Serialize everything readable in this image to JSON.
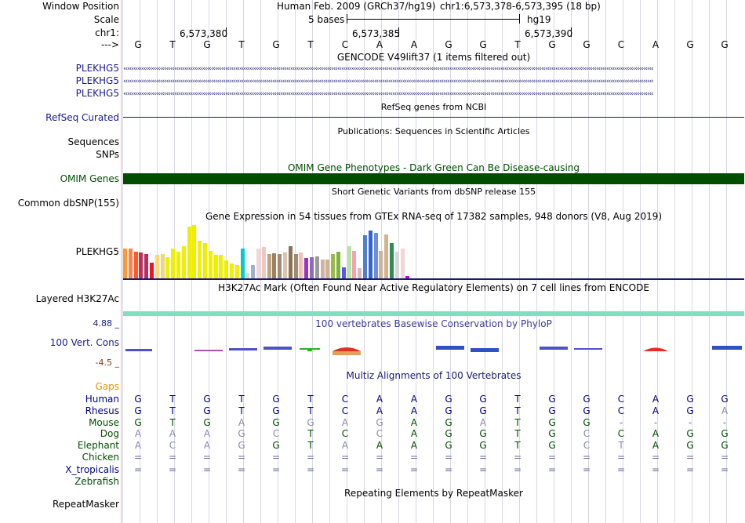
{
  "header": {
    "window_position_label": "Window Position",
    "scale_label": "Scale",
    "chrom_label": "chr1:",
    "strand_label": "--->",
    "assembly_text": "Human Feb. 2009 (GRCh37/hg19)",
    "position_text": "chr1:6,573,378-6,573,395 (18 bp)",
    "scale_text": "5 bases",
    "scale_db": "hg19",
    "coords": [
      "6,573,380",
      "6,573,385",
      "6,573,390"
    ]
  },
  "sequence": [
    "G",
    "T",
    "G",
    "T",
    "G",
    "T",
    "C",
    "A",
    "A",
    "G",
    "G",
    "T",
    "G",
    "G",
    "C",
    "A",
    "G",
    "G"
  ],
  "gencode": {
    "title": "GENCODE V49lift37 (1 items filtered out)",
    "tracks": [
      "PLEKHG5",
      "PLEKHG5",
      "PLEKHG5"
    ]
  },
  "refseq": {
    "title": "RefSeq genes from NCBI",
    "label": "RefSeq Curated"
  },
  "publications": {
    "title": "Publications: Sequences in Scientific Articles",
    "labels": [
      "Sequences",
      "SNPs"
    ]
  },
  "omim": {
    "title": "OMIM Gene Phenotypes - Dark Green Can Be Disease-causing",
    "label": "OMIM Genes",
    "color": "#004d00"
  },
  "dbsnp": {
    "title": "Short Genetic Variants from dbSNP release 155",
    "label": "Common dbSNP(155)"
  },
  "gtex": {
    "title": "Gene Expression in 54 tissues from GTEx RNA-seq of 17382 samples, 948 donors (V8, Aug 2019)",
    "label": "PLEKHG5",
    "bars": [
      {
        "value": 0.55,
        "color": "#ff9933"
      },
      {
        "value": 0.55,
        "color": "#ff7f50"
      },
      {
        "value": 0.5,
        "color": "#ff5a2e"
      },
      {
        "value": 0.48,
        "color": "#c42b5b"
      },
      {
        "value": 0.46,
        "color": "#b03060"
      },
      {
        "value": 0.3,
        "color": "#e8171b"
      },
      {
        "value": 0.44,
        "color": "#ffd96e"
      },
      {
        "value": 0.46,
        "color": "#ead885"
      },
      {
        "value": 0.4,
        "color": "#eef000"
      },
      {
        "value": 0.55,
        "color": "#eef000"
      },
      {
        "value": 0.5,
        "color": "#eef000"
      },
      {
        "value": 0.6,
        "color": "#eef000"
      },
      {
        "value": 0.95,
        "color": "#eef000"
      },
      {
        "value": 0.98,
        "color": "#eef000"
      },
      {
        "value": 0.7,
        "color": "#eef000"
      },
      {
        "value": 0.66,
        "color": "#eef000"
      },
      {
        "value": 0.52,
        "color": "#eef000"
      },
      {
        "value": 0.44,
        "color": "#eef000"
      },
      {
        "value": 0.44,
        "color": "#eef000"
      },
      {
        "value": 0.34,
        "color": "#eef000"
      },
      {
        "value": 0.28,
        "color": "#eef000"
      },
      {
        "value": 0.26,
        "color": "#eef000"
      },
      {
        "value": 0.55,
        "color": "#00cccc"
      },
      {
        "value": 0.12,
        "color": "#d8d8d8"
      },
      {
        "value": 0.26,
        "color": "#9eb3d1"
      },
      {
        "value": 0.56,
        "color": "#f6d5d5"
      },
      {
        "value": 0.58,
        "color": "#f2c8be"
      },
      {
        "value": 0.45,
        "color": "#bea485"
      },
      {
        "value": 0.47,
        "color": "#a08060"
      },
      {
        "value": 0.45,
        "color": "#a08a74"
      },
      {
        "value": 0.48,
        "color": "#dac6b0"
      },
      {
        "value": 0.6,
        "color": "#8b7355"
      },
      {
        "value": 0.46,
        "color": "#a08a74"
      },
      {
        "value": 0.48,
        "color": "#f3bfb5"
      },
      {
        "value": 0.38,
        "color": "#9932cc"
      },
      {
        "value": 0.4,
        "color": "#8c6bbf"
      },
      {
        "value": 0.42,
        "color": "#999999"
      },
      {
        "value": 0.36,
        "color": "#cfb4a6"
      },
      {
        "value": 0.36,
        "color": "#d2b48c"
      },
      {
        "value": 0.46,
        "color": "#99bb44"
      },
      {
        "value": 0.5,
        "color": "#7cb342"
      },
      {
        "value": 0.22,
        "color": "#5555ff"
      },
      {
        "value": 0.6,
        "color": "#b5e5a5"
      },
      {
        "value": 0.52,
        "color": "#ff9db0"
      },
      {
        "value": 0.2,
        "color": "#e0b8b8"
      },
      {
        "value": 0.8,
        "color": "#4f7fd1"
      },
      {
        "value": 0.88,
        "color": "#3366cc"
      },
      {
        "value": 0.84,
        "color": "#6f8fd4"
      },
      {
        "value": 0.52,
        "color": "#cdb39c"
      },
      {
        "value": 0.82,
        "color": "#d2b48c"
      },
      {
        "value": 0.66,
        "color": "#2e8b57"
      },
      {
        "value": 0.5,
        "color": "#d8d8d8"
      },
      {
        "value": 0.55,
        "color": "#f6d5d5"
      },
      {
        "value": 0.06,
        "color": "#cc00cc"
      }
    ]
  },
  "h3k27ac": {
    "title": "H3K27Ac Mark (Often Found Near Active Regulatory Elements) on 7 cell lines from ENCODE",
    "label": "Layered H3K27Ac",
    "color": "#7fdfbf"
  },
  "phylop": {
    "title": "100 vertebrates Basewise Conservation by PhyloP",
    "label": "100 Vert. Cons",
    "max": "4.88 _",
    "min": "-4.5 _"
  },
  "multiz": {
    "title": "Multiz Alignments of 100 Vertebrates",
    "gaps_label": "Gaps",
    "species": [
      {
        "name": "Human",
        "color": "#000080",
        "bases": [
          "G",
          "T",
          "G",
          "T",
          "G",
          "T",
          "C",
          "A",
          "A",
          "G",
          "G",
          "T",
          "G",
          "G",
          "C",
          "A",
          "G",
          "G"
        ]
      },
      {
        "name": "Rhesus",
        "color": "#000080",
        "bases": [
          "G",
          "T",
          "G",
          "T",
          "G",
          "T",
          "C",
          "A",
          "A",
          "G",
          "G",
          "T",
          "G",
          "G",
          "C",
          "A",
          "G",
          "A"
        ]
      },
      {
        "name": "Mouse",
        "color": "#004d00",
        "bases": [
          "G",
          "T",
          "G",
          "A",
          "G",
          "G",
          "A",
          "G",
          "A",
          "G",
          "A",
          "T",
          "G",
          "G",
          "-",
          "-",
          "-",
          "-"
        ]
      },
      {
        "name": "Dog",
        "color": "#004d00",
        "bases": [
          "A",
          "A",
          "A",
          "G",
          "C",
          "T",
          "C",
          "C",
          "A",
          "G",
          "G",
          "T",
          "G",
          "C",
          "C",
          "A",
          "G",
          "G"
        ]
      },
      {
        "name": "Elephant",
        "color": "#004d00",
        "bases": [
          "A",
          "C",
          "A",
          "G",
          "G",
          "T",
          "A",
          "A",
          "A",
          "G",
          "G",
          "T",
          "G",
          "C",
          "T",
          "A",
          "G",
          "G"
        ]
      },
      {
        "name": "Chicken",
        "color": "#004d00",
        "bases": [
          "=",
          "=",
          "=",
          "=",
          "=",
          "=",
          "=",
          "=",
          "=",
          "=",
          "=",
          "=",
          "=",
          "=",
          "=",
          "=",
          "=",
          "="
        ]
      },
      {
        "name": "X_tropicalis",
        "color": "#000080",
        "bases": [
          "=",
          "=",
          "=",
          "=",
          "=",
          "=",
          "=",
          "=",
          "=",
          "=",
          "=",
          "=",
          "=",
          "=",
          "=",
          "=",
          "=",
          "="
        ]
      },
      {
        "name": "Zebrafish",
        "color": "#004d00",
        "bases": []
      }
    ]
  },
  "repeatmasker": {
    "title": "Repeating Elements by RepeatMasker",
    "label": "RepeatMasker"
  }
}
